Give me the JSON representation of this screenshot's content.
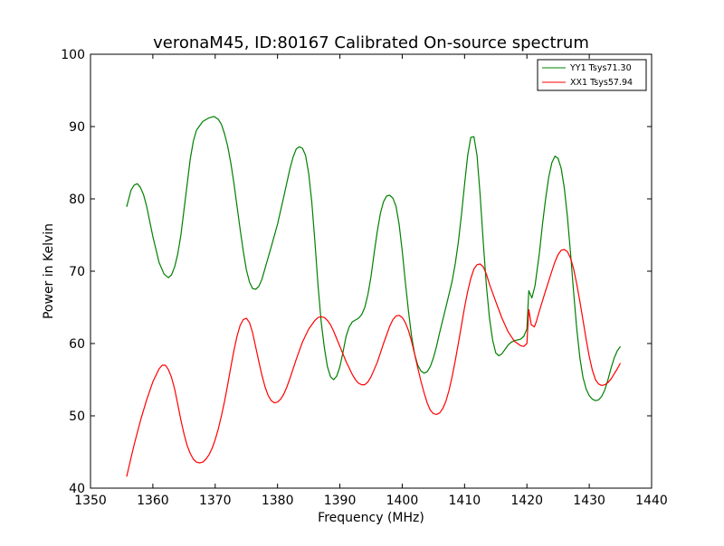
{
  "chart_data": {
    "type": "line",
    "title": "veronaM45, ID:80167 Calibrated On-source spectrum",
    "xlabel": "Frequency (MHz)",
    "ylabel": "Power in Kelvin",
    "xlim": [
      1350,
      1440
    ],
    "ylim": [
      40,
      100
    ],
    "xticks": [
      1350,
      1360,
      1370,
      1380,
      1390,
      1400,
      1410,
      1420,
      1430,
      1440
    ],
    "yticks": [
      40,
      50,
      60,
      70,
      80,
      90,
      100
    ],
    "grid": false,
    "legend_position": "top-right",
    "series": [
      {
        "name": "YY1 Tsys71.30",
        "color": "#008000",
        "points": [
          [
            1355.8,
            78.9
          ],
          [
            1356.5,
            81.2
          ],
          [
            1357.0,
            81.9
          ],
          [
            1357.5,
            82.1
          ],
          [
            1358.0,
            81.6
          ],
          [
            1358.5,
            80.6
          ],
          [
            1359.0,
            79.0
          ],
          [
            1360.0,
            74.8
          ],
          [
            1361.0,
            71.2
          ],
          [
            1361.8,
            69.6
          ],
          [
            1362.5,
            69.1
          ],
          [
            1363.0,
            69.5
          ],
          [
            1363.5,
            70.6
          ],
          [
            1364.0,
            72.4
          ],
          [
            1364.5,
            75.0
          ],
          [
            1365.0,
            78.5
          ],
          [
            1365.5,
            82.0
          ],
          [
            1366.0,
            85.5
          ],
          [
            1366.5,
            88.0
          ],
          [
            1367.0,
            89.5
          ],
          [
            1368.0,
            90.7
          ],
          [
            1369.0,
            91.2
          ],
          [
            1369.8,
            91.4
          ],
          [
            1370.5,
            91.0
          ],
          [
            1371.0,
            90.3
          ],
          [
            1371.5,
            89.0
          ],
          [
            1372.0,
            87.3
          ],
          [
            1372.5,
            85.0
          ],
          [
            1373.0,
            82.2
          ],
          [
            1373.5,
            79.0
          ],
          [
            1374.0,
            75.8
          ],
          [
            1374.5,
            72.8
          ],
          [
            1375.0,
            70.2
          ],
          [
            1375.5,
            68.5
          ],
          [
            1376.0,
            67.6
          ],
          [
            1376.5,
            67.5
          ],
          [
            1377.0,
            67.9
          ],
          [
            1377.5,
            68.9
          ],
          [
            1378.0,
            70.4
          ],
          [
            1379.0,
            73.4
          ],
          [
            1380.0,
            76.5
          ],
          [
            1381.0,
            80.3
          ],
          [
            1382.0,
            84.2
          ],
          [
            1382.5,
            85.8
          ],
          [
            1383.0,
            86.9
          ],
          [
            1383.5,
            87.2
          ],
          [
            1384.0,
            87.0
          ],
          [
            1384.5,
            86.0
          ],
          [
            1385.0,
            83.5
          ],
          [
            1385.5,
            79.5
          ],
          [
            1386.0,
            74.0
          ],
          [
            1386.5,
            68.0
          ],
          [
            1387.0,
            63.0
          ],
          [
            1387.5,
            59.5
          ],
          [
            1388.0,
            56.8
          ],
          [
            1388.5,
            55.4
          ],
          [
            1389.0,
            55.0
          ],
          [
            1389.5,
            55.5
          ],
          [
            1390.0,
            56.8
          ],
          [
            1390.5,
            58.8
          ],
          [
            1391.0,
            61.0
          ],
          [
            1391.5,
            62.3
          ],
          [
            1392.0,
            63.0
          ],
          [
            1393.0,
            63.5
          ],
          [
            1393.5,
            64.0
          ],
          [
            1394.0,
            65.0
          ],
          [
            1394.5,
            66.8
          ],
          [
            1395.0,
            69.3
          ],
          [
            1395.5,
            72.5
          ],
          [
            1396.0,
            75.5
          ],
          [
            1396.5,
            78.0
          ],
          [
            1397.0,
            79.6
          ],
          [
            1397.5,
            80.4
          ],
          [
            1398.0,
            80.5
          ],
          [
            1398.5,
            80.1
          ],
          [
            1399.0,
            79.0
          ],
          [
            1399.5,
            76.5
          ],
          [
            1400.0,
            72.8
          ],
          [
            1400.5,
            68.5
          ],
          [
            1401.0,
            64.5
          ],
          [
            1401.5,
            61.0
          ],
          [
            1402.0,
            58.5
          ],
          [
            1402.5,
            57.0
          ],
          [
            1403.0,
            56.2
          ],
          [
            1403.5,
            55.9
          ],
          [
            1404.0,
            56.1
          ],
          [
            1404.5,
            56.8
          ],
          [
            1405.0,
            58.0
          ],
          [
            1405.5,
            59.6
          ],
          [
            1406.0,
            61.5
          ],
          [
            1407.0,
            65.0
          ],
          [
            1408.0,
            68.6
          ],
          [
            1408.5,
            71.0
          ],
          [
            1409.0,
            74.0
          ],
          [
            1409.5,
            77.8
          ],
          [
            1410.0,
            82.0
          ],
          [
            1410.5,
            86.0
          ],
          [
            1411.0,
            88.5
          ],
          [
            1411.5,
            88.6
          ],
          [
            1412.0,
            86.0
          ],
          [
            1412.5,
            80.5
          ],
          [
            1413.0,
            74.0
          ],
          [
            1413.5,
            68.0
          ],
          [
            1414.0,
            63.5
          ],
          [
            1414.5,
            60.5
          ],
          [
            1415.0,
            58.7
          ],
          [
            1415.5,
            58.3
          ],
          [
            1416.0,
            58.6
          ],
          [
            1416.5,
            59.2
          ],
          [
            1417.0,
            59.8
          ],
          [
            1417.5,
            60.2
          ],
          [
            1418.0,
            60.4
          ],
          [
            1418.5,
            60.5
          ],
          [
            1419.0,
            60.6
          ],
          [
            1419.5,
            61.0
          ],
          [
            1420.0,
            62.0
          ],
          [
            1420.3,
            67.3
          ],
          [
            1420.8,
            66.3
          ],
          [
            1421.3,
            68.0
          ],
          [
            1422.0,
            72.5
          ],
          [
            1422.5,
            76.5
          ],
          [
            1423.0,
            80.0
          ],
          [
            1423.5,
            83.0
          ],
          [
            1424.0,
            85.0
          ],
          [
            1424.5,
            85.9
          ],
          [
            1425.0,
            85.6
          ],
          [
            1425.5,
            84.2
          ],
          [
            1426.0,
            81.5
          ],
          [
            1426.5,
            77.5
          ],
          [
            1427.0,
            72.5
          ],
          [
            1427.5,
            67.0
          ],
          [
            1428.0,
            62.0
          ],
          [
            1428.5,
            58.0
          ],
          [
            1429.0,
            55.3
          ],
          [
            1429.5,
            53.7
          ],
          [
            1430.0,
            52.8
          ],
          [
            1430.5,
            52.3
          ],
          [
            1431.0,
            52.1
          ],
          [
            1431.5,
            52.2
          ],
          [
            1432.0,
            52.7
          ],
          [
            1432.5,
            53.6
          ],
          [
            1433.0,
            55.0
          ],
          [
            1433.5,
            56.6
          ],
          [
            1434.0,
            58.0
          ],
          [
            1434.5,
            59.0
          ],
          [
            1435.0,
            59.6
          ]
        ]
      },
      {
        "name": "XX1 Tsys57.94",
        "color": "#ff0000",
        "points": [
          [
            1355.8,
            41.6
          ],
          [
            1356.5,
            44.2
          ],
          [
            1357.0,
            46.0
          ],
          [
            1358.0,
            49.3
          ],
          [
            1359.0,
            52.2
          ],
          [
            1360.0,
            54.7
          ],
          [
            1361.0,
            56.5
          ],
          [
            1361.5,
            57.0
          ],
          [
            1362.0,
            57.0
          ],
          [
            1362.5,
            56.4
          ],
          [
            1363.0,
            55.3
          ],
          [
            1363.5,
            53.7
          ],
          [
            1364.0,
            51.6
          ],
          [
            1364.5,
            49.4
          ],
          [
            1365.0,
            47.5
          ],
          [
            1365.5,
            45.9
          ],
          [
            1366.0,
            44.8
          ],
          [
            1366.5,
            44.0
          ],
          [
            1367.0,
            43.6
          ],
          [
            1367.5,
            43.5
          ],
          [
            1368.0,
            43.6
          ],
          [
            1368.5,
            44.0
          ],
          [
            1369.0,
            44.6
          ],
          [
            1369.5,
            45.5
          ],
          [
            1370.0,
            46.7
          ],
          [
            1370.5,
            48.2
          ],
          [
            1371.0,
            50.0
          ],
          [
            1371.5,
            52.0
          ],
          [
            1372.0,
            54.3
          ],
          [
            1372.5,
            56.7
          ],
          [
            1373.0,
            59.0
          ],
          [
            1373.5,
            61.0
          ],
          [
            1374.0,
            62.5
          ],
          [
            1374.5,
            63.3
          ],
          [
            1375.0,
            63.5
          ],
          [
            1375.5,
            62.9
          ],
          [
            1376.0,
            61.5
          ],
          [
            1376.5,
            59.5
          ],
          [
            1377.0,
            57.5
          ],
          [
            1377.5,
            55.6
          ],
          [
            1378.0,
            54.0
          ],
          [
            1378.5,
            52.8
          ],
          [
            1379.0,
            52.1
          ],
          [
            1379.5,
            51.8
          ],
          [
            1380.0,
            51.9
          ],
          [
            1380.5,
            52.3
          ],
          [
            1381.0,
            53.0
          ],
          [
            1381.5,
            54.0
          ],
          [
            1382.0,
            55.2
          ],
          [
            1383.0,
            57.8
          ],
          [
            1384.0,
            60.2
          ],
          [
            1385.0,
            62.0
          ],
          [
            1386.0,
            63.2
          ],
          [
            1386.5,
            63.6
          ],
          [
            1387.0,
            63.7
          ],
          [
            1387.5,
            63.6
          ],
          [
            1388.0,
            63.2
          ],
          [
            1388.5,
            62.6
          ],
          [
            1389.0,
            61.7
          ],
          [
            1390.0,
            59.6
          ],
          [
            1391.0,
            57.5
          ],
          [
            1392.0,
            55.7
          ],
          [
            1392.5,
            55.0
          ],
          [
            1393.0,
            54.5
          ],
          [
            1393.5,
            54.3
          ],
          [
            1394.0,
            54.3
          ],
          [
            1394.5,
            54.7
          ],
          [
            1395.0,
            55.4
          ],
          [
            1396.0,
            57.4
          ],
          [
            1397.0,
            60.0
          ],
          [
            1398.0,
            62.4
          ],
          [
            1398.5,
            63.3
          ],
          [
            1399.0,
            63.8
          ],
          [
            1399.5,
            63.9
          ],
          [
            1400.0,
            63.6
          ],
          [
            1400.5,
            62.9
          ],
          [
            1401.0,
            61.8
          ],
          [
            1401.5,
            60.3
          ],
          [
            1402.0,
            58.5
          ],
          [
            1402.5,
            56.6
          ],
          [
            1403.0,
            54.8
          ],
          [
            1403.5,
            53.2
          ],
          [
            1404.0,
            51.8
          ],
          [
            1404.5,
            50.8
          ],
          [
            1405.0,
            50.3
          ],
          [
            1405.5,
            50.2
          ],
          [
            1406.0,
            50.4
          ],
          [
            1406.5,
            51.0
          ],
          [
            1407.0,
            52.0
          ],
          [
            1407.5,
            53.5
          ],
          [
            1408.0,
            55.4
          ],
          [
            1408.5,
            57.6
          ],
          [
            1409.0,
            60.0
          ],
          [
            1409.5,
            62.5
          ],
          [
            1410.0,
            65.0
          ],
          [
            1410.5,
            67.2
          ],
          [
            1411.0,
            69.0
          ],
          [
            1411.5,
            70.3
          ],
          [
            1412.0,
            70.9
          ],
          [
            1412.5,
            71.0
          ],
          [
            1413.0,
            70.6
          ],
          [
            1413.5,
            69.6
          ],
          [
            1414.0,
            68.2
          ],
          [
            1415.0,
            65.8
          ],
          [
            1416.0,
            63.5
          ],
          [
            1417.0,
            61.6
          ],
          [
            1418.0,
            60.3
          ],
          [
            1419.0,
            59.7
          ],
          [
            1419.5,
            59.6
          ],
          [
            1420.0,
            60.0
          ],
          [
            1420.3,
            64.7
          ],
          [
            1420.7,
            62.6
          ],
          [
            1421.2,
            62.3
          ],
          [
            1421.5,
            63.0
          ],
          [
            1422.0,
            64.5
          ],
          [
            1423.0,
            67.3
          ],
          [
            1424.0,
            70.0
          ],
          [
            1424.5,
            71.3
          ],
          [
            1425.0,
            72.3
          ],
          [
            1425.5,
            72.9
          ],
          [
            1426.0,
            73.0
          ],
          [
            1426.5,
            72.7
          ],
          [
            1427.0,
            71.8
          ],
          [
            1427.5,
            70.3
          ],
          [
            1428.0,
            68.2
          ],
          [
            1428.5,
            65.8
          ],
          [
            1429.0,
            63.2
          ],
          [
            1429.5,
            60.6
          ],
          [
            1430.0,
            58.2
          ],
          [
            1430.5,
            56.3
          ],
          [
            1431.0,
            55.0
          ],
          [
            1431.5,
            54.4
          ],
          [
            1432.0,
            54.2
          ],
          [
            1432.5,
            54.3
          ],
          [
            1433.0,
            54.6
          ],
          [
            1433.5,
            55.1
          ],
          [
            1434.0,
            55.8
          ],
          [
            1434.5,
            56.5
          ],
          [
            1435.0,
            57.3
          ]
        ]
      }
    ]
  }
}
